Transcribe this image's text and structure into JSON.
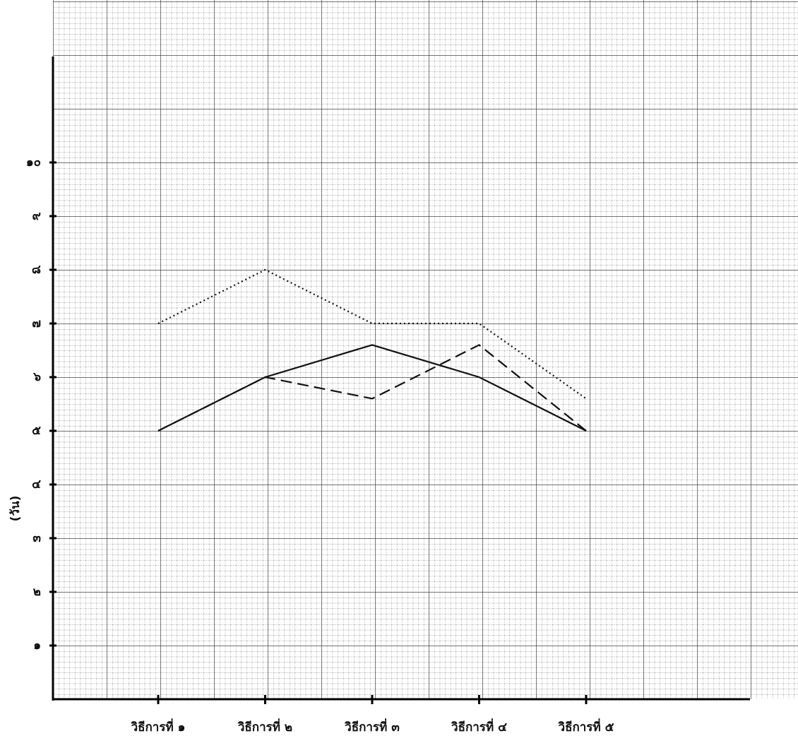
{
  "chart_data": {
    "type": "line",
    "y_label": "(วัน)",
    "categories": [
      "วิธีการที่ ๑",
      "วิธีการที่ ๒",
      "วิธีการที่ ๓",
      "วิธีการที่ ๔",
      "วิธีการที่ ๕"
    ],
    "series": [
      {
        "color": "#111111",
        "dash": "dotted",
        "values": [
          7,
          8,
          7,
          7,
          5.6
        ]
      },
      {
        "color": "#111111",
        "dash": "solid",
        "values": [
          5,
          6,
          6.6,
          6,
          5
        ]
      },
      {
        "color": "#111111",
        "dash": "dashed",
        "values": [
          5,
          6,
          5.6,
          6.6,
          5
        ]
      }
    ],
    "ylim": [
      0,
      12
    ],
    "yticks": [
      {
        "value": 1,
        "label": "๑"
      },
      {
        "value": 2,
        "label": "๒"
      },
      {
        "value": 3,
        "label": "๓"
      },
      {
        "value": 4,
        "label": "๔"
      },
      {
        "value": 5,
        "label": "๕"
      },
      {
        "value": 6,
        "label": "๖"
      },
      {
        "value": 7,
        "label": "๗"
      },
      {
        "value": 8,
        "label": "๘"
      },
      {
        "value": 9,
        "label": "๙"
      },
      {
        "value": 10,
        "label": "๑๐"
      }
    ]
  }
}
